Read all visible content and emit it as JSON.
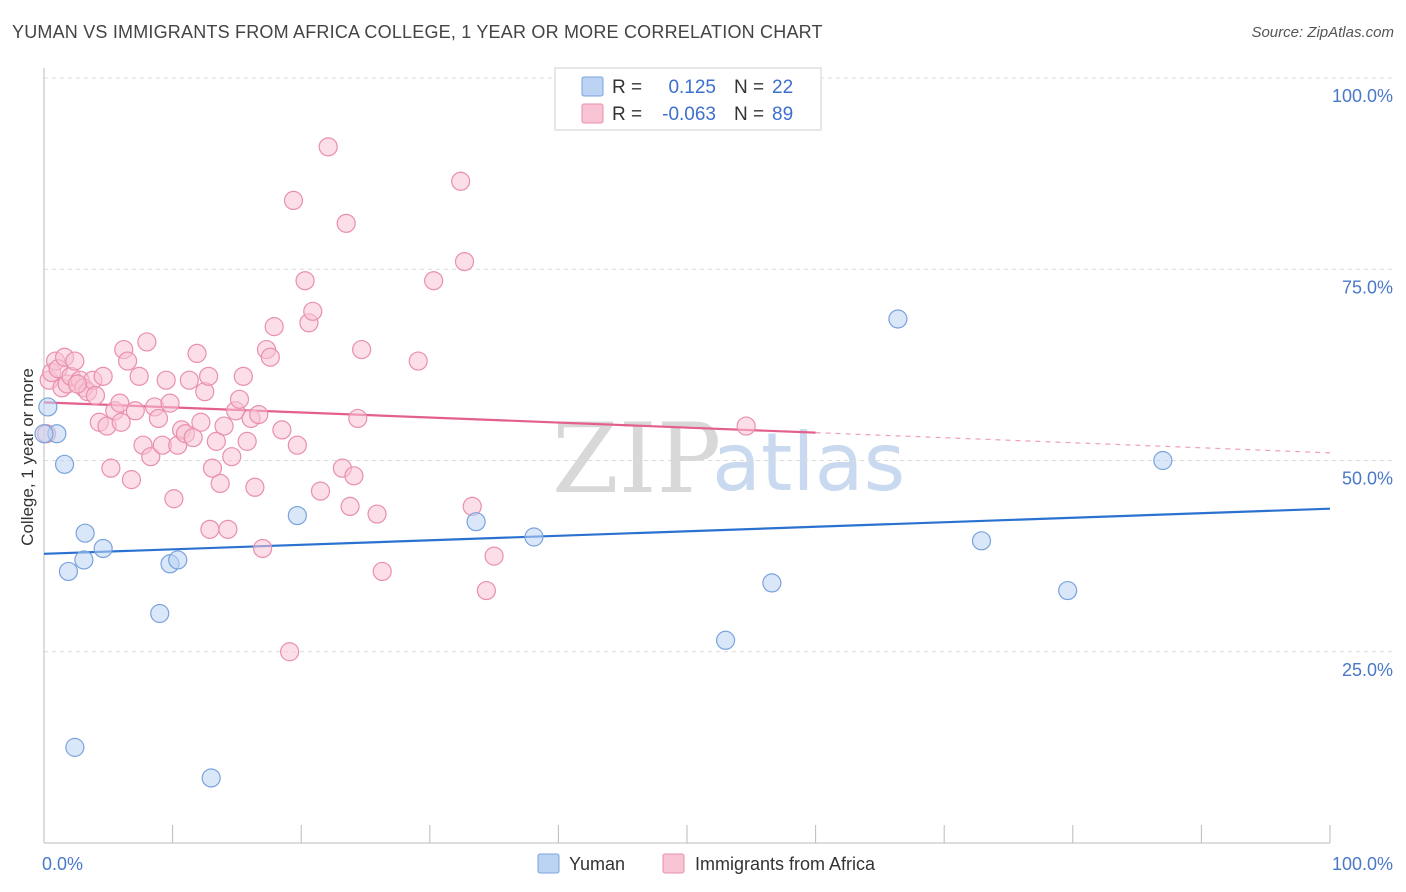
{
  "title": "YUMAN VS IMMIGRANTS FROM AFRICA COLLEGE, 1 YEAR OR MORE CORRELATION CHART",
  "source": "Source: ZipAtlas.com",
  "watermark": {
    "zip": "ZIP",
    "atlas": "atlas"
  },
  "colors": {
    "yuman_fill": "#bcd3f4",
    "yuman_stroke": "#7aa3dd",
    "yuman_line": "#2b72d0",
    "africa_fill": "#f8c3d3",
    "africa_stroke": "#e98fae",
    "africa_line": "#e4608c",
    "grid": "#dcdcdc",
    "tick_text": "#4a78c9"
  },
  "stats": [
    {
      "r_label": "R =",
      "r_value": "0.125",
      "n_label": "N =",
      "n_value": "22"
    },
    {
      "r_label": "R =",
      "r_value": "-0.063",
      "n_label": "N =",
      "n_value": "89"
    }
  ],
  "chart_data": {
    "type": "scatter",
    "title": "YUMAN VS IMMIGRANTS FROM AFRICA COLLEGE, 1 YEAR OR MORE CORRELATION CHART",
    "xlabel": "",
    "ylabel": "College, 1 year or more",
    "xlim": [
      0,
      100
    ],
    "ylim": [
      0,
      100
    ],
    "x_ticks": [
      "0.0%",
      "100.0%"
    ],
    "y_ticks": [
      {
        "value": 100,
        "label": "100.0%"
      },
      {
        "value": 75,
        "label": "75.0%"
      },
      {
        "value": 50,
        "label": "50.0%"
      },
      {
        "value": 25,
        "label": "25.0%"
      }
    ],
    "grid": true,
    "legend_position": "bottom",
    "series": [
      {
        "name": "Yuman",
        "points": [
          [
            0.3,
            57
          ],
          [
            1.0,
            53.5
          ],
          [
            1.6,
            49.5
          ],
          [
            1.9,
            35.5
          ],
          [
            2.4,
            12.5
          ],
          [
            3.1,
            37
          ],
          [
            3.2,
            40.5
          ],
          [
            4.6,
            38.5
          ],
          [
            9.0,
            30
          ],
          [
            9.8,
            36.5
          ],
          [
            10.4,
            37
          ],
          [
            13.0,
            8.5
          ],
          [
            19.7,
            42.8
          ],
          [
            33.6,
            42
          ],
          [
            38.1,
            40
          ],
          [
            53.0,
            26.5
          ],
          [
            56.6,
            34
          ],
          [
            66.4,
            68.5
          ],
          [
            72.9,
            39.5
          ],
          [
            79.6,
            33
          ],
          [
            87.0,
            50
          ],
          [
            0.0,
            53.5
          ]
        ],
        "trend": {
          "x": [
            0,
            100
          ],
          "y": [
            37.8,
            43.7
          ],
          "dashed_from": null
        }
      },
      {
        "name": "Immigrants from Africa",
        "points": [
          [
            0.2,
            53.5
          ],
          [
            0.4,
            60.5
          ],
          [
            0.6,
            61.5
          ],
          [
            0.9,
            63
          ],
          [
            1.1,
            62
          ],
          [
            1.4,
            59.5
          ],
          [
            1.6,
            63.5
          ],
          [
            1.8,
            60
          ],
          [
            2.1,
            61
          ],
          [
            2.4,
            63
          ],
          [
            2.8,
            60.5
          ],
          [
            3.1,
            59.5
          ],
          [
            3.4,
            59
          ],
          [
            3.8,
            60.5
          ],
          [
            4.0,
            58.5
          ],
          [
            4.3,
            55
          ],
          [
            4.6,
            61
          ],
          [
            4.9,
            54.5
          ],
          [
            5.2,
            49
          ],
          [
            5.5,
            56.5
          ],
          [
            5.9,
            57.5
          ],
          [
            6.2,
            64.5
          ],
          [
            6.5,
            63
          ],
          [
            6.8,
            47.5
          ],
          [
            7.1,
            56.5
          ],
          [
            7.4,
            61
          ],
          [
            7.7,
            52
          ],
          [
            8.0,
            65.5
          ],
          [
            8.3,
            50.5
          ],
          [
            8.6,
            57
          ],
          [
            8.9,
            55.5
          ],
          [
            9.2,
            52
          ],
          [
            9.5,
            60.5
          ],
          [
            9.8,
            57.5
          ],
          [
            10.1,
            45
          ],
          [
            10.4,
            52
          ],
          [
            10.7,
            54
          ],
          [
            11.0,
            53.5
          ],
          [
            11.3,
            60.5
          ],
          [
            11.6,
            53
          ],
          [
            11.9,
            64
          ],
          [
            12.2,
            55
          ],
          [
            12.5,
            59
          ],
          [
            12.8,
            61
          ],
          [
            13.1,
            49
          ],
          [
            13.4,
            52.5
          ],
          [
            13.7,
            47
          ],
          [
            14.0,
            54.5
          ],
          [
            14.3,
            41
          ],
          [
            14.6,
            50.5
          ],
          [
            14.9,
            56.5
          ],
          [
            15.2,
            58
          ],
          [
            15.5,
            61
          ],
          [
            15.8,
            52.5
          ],
          [
            16.1,
            55.5
          ],
          [
            16.4,
            46.5
          ],
          [
            16.7,
            56
          ],
          [
            17.0,
            38.5
          ],
          [
            17.3,
            64.5
          ],
          [
            17.6,
            63.5
          ],
          [
            17.9,
            67.5
          ],
          [
            18.5,
            54
          ],
          [
            19.1,
            25
          ],
          [
            19.4,
            84
          ],
          [
            19.7,
            52
          ],
          [
            20.3,
            73.5
          ],
          [
            20.6,
            68
          ],
          [
            20.9,
            69.5
          ],
          [
            21.5,
            46
          ],
          [
            22.1,
            91
          ],
          [
            23.2,
            49
          ],
          [
            23.5,
            81
          ],
          [
            23.8,
            44
          ],
          [
            24.1,
            48
          ],
          [
            24.4,
            55.5
          ],
          [
            24.7,
            64.5
          ],
          [
            25.9,
            43
          ],
          [
            26.3,
            35.5
          ],
          [
            29.1,
            63
          ],
          [
            30.3,
            73.5
          ],
          [
            32.4,
            86.5
          ],
          [
            32.7,
            76
          ],
          [
            33.3,
            44
          ],
          [
            34.4,
            33
          ],
          [
            35.0,
            37.5
          ],
          [
            54.6,
            54.5
          ],
          [
            12.9,
            41
          ],
          [
            2.6,
            60
          ],
          [
            6.0,
            55
          ]
        ],
        "trend": {
          "x": [
            0,
            100
          ],
          "y": [
            57.6,
            51.0
          ],
          "dashed_from": 60
        }
      }
    ]
  },
  "legend": [
    {
      "label": "Yuman"
    },
    {
      "label": "Immigrants from Africa"
    }
  ]
}
